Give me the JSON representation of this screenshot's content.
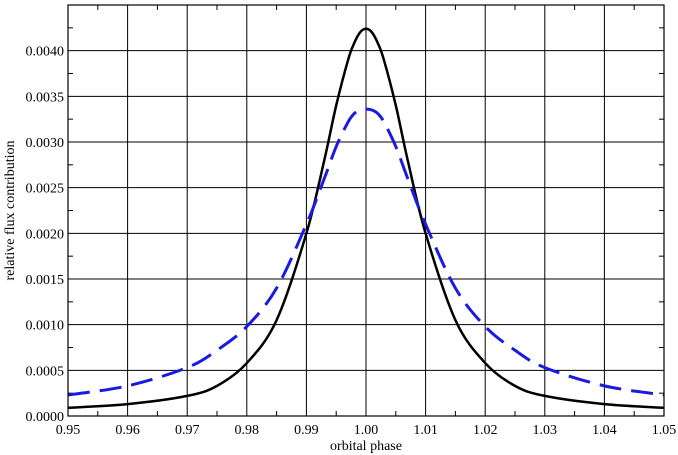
{
  "chart_data": {
    "type": "line",
    "title": "",
    "xlabel": "orbital phase",
    "ylabel": "relative flux contribution",
    "xlim": [
      0.95,
      1.05
    ],
    "ylim": [
      0.0,
      0.0045
    ],
    "grid": true,
    "x_ticks": [
      "0.95",
      "0.96",
      "0.97",
      "0.98",
      "0.99",
      "1.00",
      "1.01",
      "1.02",
      "1.03",
      "1.04",
      "1.05"
    ],
    "y_ticks": [
      "0.0000",
      "0.0005",
      "0.0010",
      "0.0015",
      "0.0020",
      "0.0025",
      "0.0030",
      "0.0035",
      "0.0040"
    ],
    "series": [
      {
        "style": "solid",
        "color": "#000000",
        "x": [
          0.95,
          0.96,
          0.97,
          0.975,
          0.98,
          0.985,
          0.99,
          0.993,
          0.995,
          0.997,
          0.998,
          0.999,
          1.0,
          1.001,
          1.002,
          1.003,
          1.005,
          1.007,
          1.01,
          1.015,
          1.02,
          1.025,
          1.03,
          1.04,
          1.05
        ],
        "y": [
          9e-05,
          0.00013,
          0.00022,
          0.00033,
          0.00058,
          0.00105,
          0.002,
          0.0028,
          0.0034,
          0.0039,
          0.00408,
          0.0042,
          0.00424,
          0.0042,
          0.00408,
          0.0039,
          0.0034,
          0.0028,
          0.002,
          0.00105,
          0.00058,
          0.00033,
          0.00022,
          0.00013,
          9e-05
        ]
      },
      {
        "style": "dashed",
        "color": "#1a1ae0",
        "x": [
          0.95,
          0.96,
          0.97,
          0.975,
          0.98,
          0.985,
          0.99,
          0.993,
          0.995,
          0.997,
          0.998,
          0.999,
          1.0,
          1.001,
          1.002,
          1.003,
          1.005,
          1.007,
          1.01,
          1.015,
          1.02,
          1.025,
          1.03,
          1.04,
          1.05
        ],
        "y": [
          0.00023,
          0.00033,
          0.00053,
          0.00072,
          0.00098,
          0.0014,
          0.0021,
          0.0026,
          0.00295,
          0.00322,
          0.00331,
          0.00335,
          0.00336,
          0.00335,
          0.00331,
          0.00322,
          0.00295,
          0.0026,
          0.0021,
          0.0014,
          0.00098,
          0.00072,
          0.00053,
          0.00033,
          0.00023
        ]
      }
    ]
  }
}
